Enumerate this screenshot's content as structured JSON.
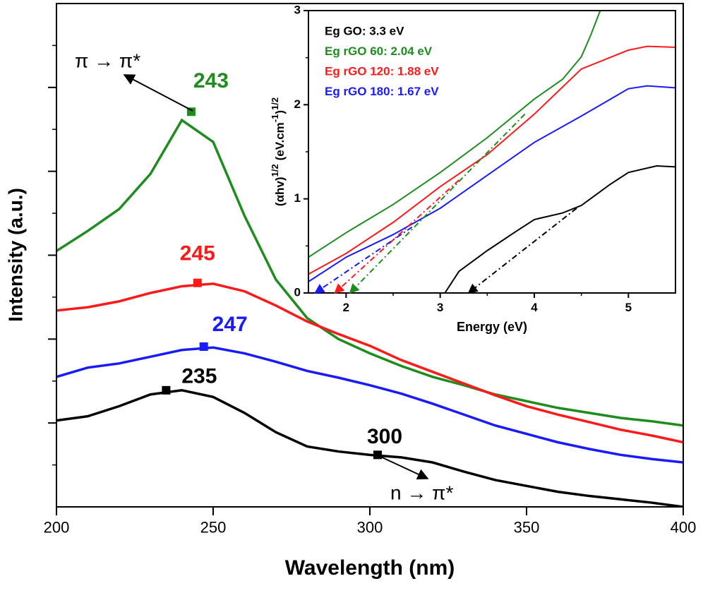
{
  "chart_data": [
    {
      "type": "line",
      "x_label": "Wavelength (nm)",
      "y_label": "Intensity (a.u.)",
      "xlim": [
        200,
        400
      ],
      "xticks": [
        200,
        250,
        300,
        350,
        400
      ],
      "ylim": [
        0,
        6
      ],
      "yticks": [
        1,
        2,
        3,
        4,
        5
      ],
      "yminorticks": [
        0.5,
        1.5,
        2.5,
        3.5,
        4.5,
        5.5
      ],
      "x": [
        200,
        210,
        220,
        230,
        240,
        250,
        260,
        270,
        280,
        290,
        300,
        310,
        320,
        330,
        340,
        350,
        360,
        370,
        380,
        390,
        400
      ],
      "series": [
        {
          "color": "#1e8c1e",
          "values": [
            3.05,
            3.29,
            3.55,
            3.97,
            4.61,
            4.35,
            3.47,
            2.71,
            2.25,
            2.0,
            1.83,
            1.68,
            1.55,
            1.45,
            1.34,
            1.26,
            1.18,
            1.12,
            1.06,
            1.02,
            0.97
          ],
          "markers": [
            {
              "x": 243,
              "y": 4.71
            }
          ]
        },
        {
          "color": "#ff1a1a",
          "values": [
            2.34,
            2.38,
            2.45,
            2.55,
            2.63,
            2.66,
            2.57,
            2.4,
            2.21,
            2.06,
            1.92,
            1.75,
            1.61,
            1.47,
            1.33,
            1.2,
            1.1,
            1.01,
            0.92,
            0.85,
            0.77
          ],
          "markers": [
            {
              "x": 245,
              "y": 2.67
            }
          ]
        },
        {
          "color": "#1a1aff",
          "values": [
            1.55,
            1.66,
            1.71,
            1.79,
            1.87,
            1.9,
            1.83,
            1.73,
            1.62,
            1.54,
            1.45,
            1.35,
            1.23,
            1.1,
            0.97,
            0.87,
            0.77,
            0.69,
            0.62,
            0.57,
            0.53
          ],
          "markers": [
            {
              "x": 247,
              "y": 1.91
            }
          ]
        },
        {
          "color": "#000000",
          "values": [
            1.03,
            1.08,
            1.2,
            1.34,
            1.39,
            1.31,
            1.12,
            0.89,
            0.72,
            0.66,
            0.62,
            0.59,
            0.53,
            0.42,
            0.32,
            0.25,
            0.18,
            0.13,
            0.09,
            0.05,
            0
          ],
          "markers": [
            {
              "x": 235,
              "y": 1.39
            },
            {
              "x": 300,
              "y": 0.62
            }
          ]
        }
      ],
      "annotations": [
        {
          "text": "π → π*"
        },
        {
          "text": "n → π*"
        }
      ]
    },
    {
      "type": "line",
      "x_label": "Energy (eV)",
      "y_label": [
        "(αhv)",
        "1/2",
        "(eV.cm",
        "-1",
        ")",
        "1/2"
      ],
      "xlim": [
        1.6,
        5.5
      ],
      "xticks": [
        2,
        3,
        4,
        5
      ],
      "xminorticks": [
        2.5,
        3.5,
        4.5
      ],
      "ylim": [
        0,
        3
      ],
      "yticks": [
        0,
        1,
        2,
        3
      ],
      "yminorticks": [
        0.5,
        1.5,
        2.5
      ],
      "legend": "upper left",
      "series": [
        {
          "name": "Eg GO: 3.3 eV",
          "color": "#000000",
          "x": [
            3.05,
            3.2,
            3.5,
            3.8,
            4.0,
            4.3,
            4.5,
            4.8,
            5.0,
            5.3,
            5.5
          ],
          "values": [
            0,
            0.23,
            0.45,
            0.65,
            0.78,
            0.85,
            0.93,
            1.15,
            1.28,
            1.35,
            1.34
          ],
          "tangent": {
            "x": [
              3.3,
              4.45
            ],
            "y": [
              0,
              0.9
            ]
          }
        },
        {
          "name": "Eg rGO 60: 2.04 eV",
          "color": "#1e8c1e",
          "x": [
            1.6,
            2.0,
            2.5,
            3.0,
            3.5,
            4.0,
            4.3,
            4.5,
            4.6,
            4.7
          ],
          "values": [
            0.38,
            0.64,
            0.94,
            1.28,
            1.65,
            2.06,
            2.27,
            2.51,
            2.74,
            3.0
          ],
          "tangent": {
            "x": [
              2.04,
              3.9
            ],
            "y": [
              0,
              1.9
            ]
          }
        },
        {
          "name": "Eg rGO 120: 1.88 eV",
          "color": "#ff1a1a",
          "x": [
            1.6,
            2.0,
            2.5,
            3.0,
            3.5,
            4.0,
            4.5,
            5.0,
            5.2,
            5.5
          ],
          "values": [
            0.2,
            0.42,
            0.75,
            1.13,
            1.47,
            1.9,
            2.38,
            2.58,
            2.62,
            2.61
          ],
          "tangent": {
            "x": [
              1.88,
              3.2
            ],
            "y": [
              0,
              1.2
            ]
          }
        },
        {
          "name": "Eg rGO 180: 1.67 eV",
          "color": "#1a1aff",
          "x": [
            1.6,
            2.0,
            2.5,
            3.0,
            3.5,
            4.0,
            4.5,
            5.0,
            5.2,
            5.5
          ],
          "values": [
            0.12,
            0.38,
            0.62,
            0.9,
            1.25,
            1.6,
            1.88,
            2.17,
            2.2,
            2.18
          ],
          "tangent": {
            "x": [
              1.67,
              2.7
            ],
            "y": [
              0,
              0.7
            ]
          }
        }
      ]
    }
  ]
}
